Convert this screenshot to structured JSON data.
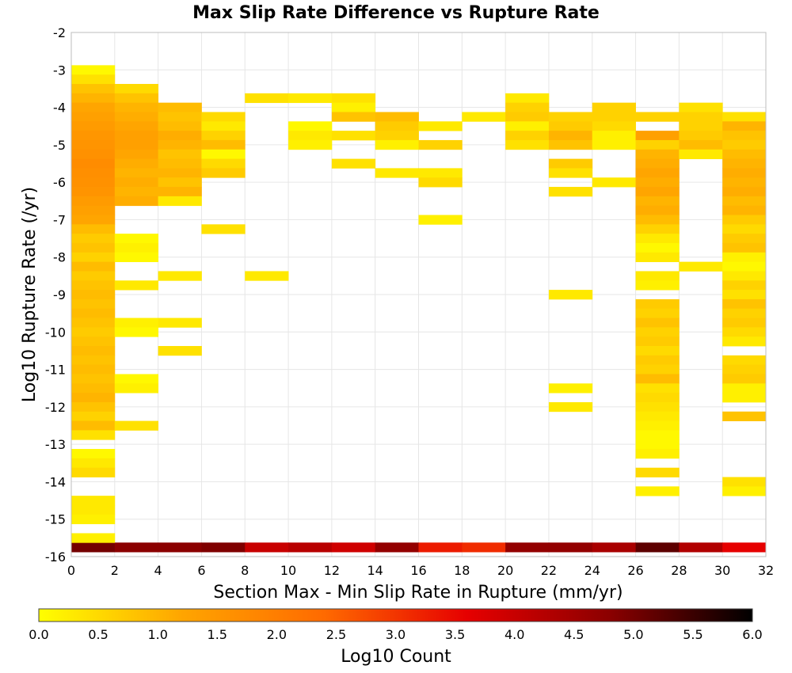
{
  "chart_data": {
    "type": "heatmap",
    "title": "Max Slip Rate Difference vs Rupture Rate",
    "xlabel": "Section Max - Min Slip Rate in Rupture (mm/yr)",
    "ylabel": "Log10 Rupture Rate (/yr)",
    "xlim": [
      0,
      32
    ],
    "ylim": [
      -16,
      -2
    ],
    "x_ticks": [
      "0",
      "2",
      "4",
      "6",
      "8",
      "10",
      "12",
      "14",
      "16",
      "18",
      "20",
      "22",
      "24",
      "26",
      "28",
      "30",
      "32"
    ],
    "y_ticks": [
      "-2",
      "-3",
      "-4",
      "-5",
      "-6",
      "-7",
      "-8",
      "-9",
      "-10",
      "-11",
      "-12",
      "-13",
      "-14",
      "-15",
      "-16"
    ],
    "grid": true,
    "bin_width": 2,
    "bin_height": 0.25,
    "colorbar": {
      "label": "Log10 Count",
      "range": [
        0,
        6
      ],
      "ticks": [
        "0.0",
        "0.5",
        "1.0",
        "1.5",
        "2.0",
        "2.5",
        "3.0",
        "3.5",
        "4.0",
        "4.5",
        "5.0",
        "5.5",
        "6.0"
      ],
      "colors": [
        "#ffff00",
        "#ffa500",
        "#ff6a00",
        "#e60000",
        "#8b0000",
        "#000000"
      ]
    },
    "cells": [
      [
        0,
        -15.75,
        5.0
      ],
      [
        2,
        -15.75,
        4.8
      ],
      [
        4,
        -15.75,
        4.8
      ],
      [
        6,
        -15.75,
        4.9
      ],
      [
        8,
        -15.75,
        4.0
      ],
      [
        10,
        -15.75,
        4.2
      ],
      [
        12,
        -15.75,
        3.9
      ],
      [
        14,
        -15.75,
        4.7
      ],
      [
        16,
        -15.75,
        3.3
      ],
      [
        18,
        -15.75,
        3.1
      ],
      [
        20,
        -15.75,
        4.7
      ],
      [
        22,
        -15.75,
        4.7
      ],
      [
        24,
        -15.75,
        4.4
      ],
      [
        26,
        -15.75,
        5.2
      ],
      [
        28,
        -15.75,
        4.3
      ],
      [
        30,
        -15.75,
        3.6
      ],
      [
        0,
        -3.0,
        0.1
      ],
      [
        0,
        -3.25,
        0.4
      ],
      [
        0,
        -3.5,
        0.8
      ],
      [
        0,
        -3.75,
        1.0
      ],
      [
        0,
        -4.0,
        1.2
      ],
      [
        0,
        -4.25,
        1.3
      ],
      [
        0,
        -4.5,
        1.4
      ],
      [
        0,
        -4.75,
        1.5
      ],
      [
        0,
        -5.0,
        1.55
      ],
      [
        0,
        -5.25,
        1.6
      ],
      [
        0,
        -5.5,
        1.7
      ],
      [
        0,
        -5.75,
        1.65
      ],
      [
        0,
        -6.0,
        1.6
      ],
      [
        0,
        -6.25,
        1.55
      ],
      [
        0,
        -6.5,
        1.4
      ],
      [
        0,
        -6.75,
        1.3
      ],
      [
        0,
        -7.0,
        1.2
      ],
      [
        0,
        -7.25,
        0.9
      ],
      [
        0,
        -7.5,
        0.7
      ],
      [
        0,
        -7.75,
        0.8
      ],
      [
        0,
        -8.0,
        0.6
      ],
      [
        0,
        -8.25,
        0.9
      ],
      [
        0,
        -8.5,
        0.7
      ],
      [
        0,
        -8.75,
        0.8
      ],
      [
        0,
        -9.0,
        0.9
      ],
      [
        0,
        -9.25,
        0.8
      ],
      [
        0,
        -9.5,
        0.9
      ],
      [
        0,
        -9.75,
        0.8
      ],
      [
        0,
        -10.0,
        0.7
      ],
      [
        0,
        -10.25,
        0.8
      ],
      [
        0,
        -10.5,
        0.9
      ],
      [
        0,
        -10.75,
        0.8
      ],
      [
        0,
        -11.0,
        0.9
      ],
      [
        0,
        -11.25,
        0.8
      ],
      [
        0,
        -11.5,
        0.9
      ],
      [
        0,
        -11.75,
        1.0
      ],
      [
        0,
        -12.0,
        0.8
      ],
      [
        0,
        -12.25,
        0.6
      ],
      [
        0,
        -12.5,
        0.9
      ],
      [
        0,
        -12.75,
        0.4
      ],
      [
        0,
        -13.25,
        0.1
      ],
      [
        0,
        -13.5,
        0.3
      ],
      [
        0,
        -13.75,
        0.5
      ],
      [
        0,
        -14.5,
        0.3
      ],
      [
        0,
        -14.75,
        0.3
      ],
      [
        0,
        -15.0,
        0.2
      ],
      [
        0,
        -15.5,
        0.2
      ],
      [
        2,
        -3.5,
        0.5
      ],
      [
        2,
        -3.75,
        0.8
      ],
      [
        2,
        -4.0,
        1.0
      ],
      [
        2,
        -4.25,
        1.1
      ],
      [
        2,
        -4.5,
        1.2
      ],
      [
        2,
        -4.75,
        1.3
      ],
      [
        2,
        -5.0,
        1.3
      ],
      [
        2,
        -5.25,
        1.2
      ],
      [
        2,
        -5.5,
        1.1
      ],
      [
        2,
        -5.75,
        1.0
      ],
      [
        2,
        -6.0,
        1.1
      ],
      [
        2,
        -6.25,
        1.0
      ],
      [
        2,
        -6.5,
        1.1
      ],
      [
        2,
        -7.5,
        0.1
      ],
      [
        2,
        -7.75,
        0.2
      ],
      [
        2,
        -8.0,
        0.1
      ],
      [
        2,
        -8.75,
        0.3
      ],
      [
        2,
        -9.75,
        0.2
      ],
      [
        2,
        -10.0,
        0.1
      ],
      [
        2,
        -11.25,
        0.1
      ],
      [
        2,
        -11.5,
        0.2
      ],
      [
        2,
        -12.5,
        0.4
      ],
      [
        4,
        -4.0,
        0.9
      ],
      [
        4,
        -4.25,
        0.8
      ],
      [
        4,
        -4.5,
        0.9
      ],
      [
        4,
        -4.75,
        1.1
      ],
      [
        4,
        -5.0,
        1.0
      ],
      [
        4,
        -5.25,
        0.8
      ],
      [
        4,
        -5.5,
        0.9
      ],
      [
        4,
        -5.75,
        1.0
      ],
      [
        4,
        -6.0,
        0.8
      ],
      [
        4,
        -6.25,
        1.0
      ],
      [
        4,
        -6.5,
        0.3
      ],
      [
        4,
        -8.5,
        0.3
      ],
      [
        4,
        -9.75,
        0.3
      ],
      [
        4,
        -10.5,
        0.4
      ],
      [
        6,
        -4.25,
        0.5
      ],
      [
        6,
        -4.5,
        0.3
      ],
      [
        6,
        -4.75,
        0.6
      ],
      [
        6,
        -5.0,
        0.9
      ],
      [
        6,
        -5.25,
        0.1
      ],
      [
        6,
        -5.5,
        0.5
      ],
      [
        6,
        -5.75,
        0.7
      ],
      [
        6,
        -7.25,
        0.4
      ],
      [
        8,
        -3.75,
        0.4
      ],
      [
        8,
        -8.5,
        0.3
      ],
      [
        10,
        -3.75,
        0.3
      ],
      [
        10,
        -4.5,
        0.1
      ],
      [
        10,
        -4.75,
        0.3
      ],
      [
        10,
        -5.0,
        0.2
      ],
      [
        12,
        -3.75,
        0.4
      ],
      [
        12,
        -4.0,
        0.2
      ],
      [
        12,
        -4.25,
        0.8
      ],
      [
        12,
        -4.75,
        0.4
      ],
      [
        12,
        -5.5,
        0.4
      ],
      [
        14,
        -4.25,
        0.9
      ],
      [
        14,
        -4.5,
        0.7
      ],
      [
        14,
        -4.75,
        0.6
      ],
      [
        14,
        -5.0,
        0.2
      ],
      [
        14,
        -5.75,
        0.3
      ],
      [
        16,
        -4.5,
        0.3
      ],
      [
        16,
        -5.0,
        0.6
      ],
      [
        16,
        -5.75,
        0.3
      ],
      [
        16,
        -6.0,
        0.5
      ],
      [
        16,
        -7.0,
        0.2
      ],
      [
        18,
        -4.25,
        0.3
      ],
      [
        20,
        -3.75,
        0.3
      ],
      [
        20,
        -4.0,
        0.6
      ],
      [
        20,
        -4.25,
        0.7
      ],
      [
        20,
        -4.5,
        0.2
      ],
      [
        20,
        -4.75,
        0.6
      ],
      [
        20,
        -5.0,
        0.4
      ],
      [
        22,
        -4.25,
        0.6
      ],
      [
        22,
        -4.5,
        0.7
      ],
      [
        22,
        -4.75,
        1.0
      ],
      [
        22,
        -5.0,
        0.8
      ],
      [
        22,
        -5.5,
        0.7
      ],
      [
        22,
        -5.75,
        0.4
      ],
      [
        22,
        -6.25,
        0.4
      ],
      [
        22,
        -9.0,
        0.3
      ],
      [
        22,
        -11.5,
        0.2
      ],
      [
        22,
        -12.0,
        0.3
      ],
      [
        24,
        -4.0,
        0.6
      ],
      [
        24,
        -4.25,
        0.6
      ],
      [
        24,
        -4.5,
        0.5
      ],
      [
        24,
        -4.75,
        0.2
      ],
      [
        24,
        -5.0,
        0.2
      ],
      [
        24,
        -6.0,
        0.3
      ],
      [
        26,
        -4.25,
        0.6
      ],
      [
        26,
        -4.75,
        1.3
      ],
      [
        26,
        -5.0,
        0.6
      ],
      [
        26,
        -5.25,
        1.0
      ],
      [
        26,
        -5.5,
        1.1
      ],
      [
        26,
        -5.75,
        1.2
      ],
      [
        26,
        -6.0,
        1.1
      ],
      [
        26,
        -6.25,
        1.2
      ],
      [
        26,
        -6.5,
        1.0
      ],
      [
        26,
        -6.75,
        1.1
      ],
      [
        26,
        -7.0,
        0.9
      ],
      [
        26,
        -7.25,
        0.6
      ],
      [
        26,
        -7.5,
        0.3
      ],
      [
        26,
        -7.75,
        0.1
      ],
      [
        26,
        -8.0,
        0.3
      ],
      [
        26,
        -8.5,
        0.3
      ],
      [
        26,
        -8.75,
        0.2
      ],
      [
        26,
        -9.25,
        0.7
      ],
      [
        26,
        -9.5,
        0.6
      ],
      [
        26,
        -9.75,
        0.8
      ],
      [
        26,
        -10.0,
        0.6
      ],
      [
        26,
        -10.25,
        0.7
      ],
      [
        26,
        -10.5,
        0.5
      ],
      [
        26,
        -10.75,
        0.7
      ],
      [
        26,
        -11.0,
        0.6
      ],
      [
        26,
        -11.25,
        0.9
      ],
      [
        26,
        -11.5,
        0.4
      ],
      [
        26,
        -11.75,
        0.5
      ],
      [
        26,
        -12.0,
        0.4
      ],
      [
        26,
        -12.25,
        0.3
      ],
      [
        26,
        -12.5,
        0.2
      ],
      [
        26,
        -12.75,
        0.1
      ],
      [
        26,
        -13.0,
        0.1
      ],
      [
        26,
        -13.25,
        0.2
      ],
      [
        26,
        -13.75,
        0.5
      ],
      [
        26,
        -14.25,
        0.2
      ],
      [
        28,
        -4.0,
        0.4
      ],
      [
        28,
        -4.25,
        0.6
      ],
      [
        28,
        -4.5,
        0.6
      ],
      [
        28,
        -4.75,
        0.7
      ],
      [
        28,
        -5.0,
        0.9
      ],
      [
        28,
        -5.25,
        0.3
      ],
      [
        28,
        -8.25,
        0.3
      ],
      [
        30,
        -4.25,
        0.4
      ],
      [
        30,
        -4.5,
        1.0
      ],
      [
        30,
        -4.75,
        0.8
      ],
      [
        30,
        -5.0,
        0.7
      ],
      [
        30,
        -5.25,
        0.9
      ],
      [
        30,
        -5.5,
        1.0
      ],
      [
        30,
        -5.75,
        1.1
      ],
      [
        30,
        -6.0,
        1.0
      ],
      [
        30,
        -6.25,
        1.1
      ],
      [
        30,
        -6.5,
        0.9
      ],
      [
        30,
        -6.75,
        1.0
      ],
      [
        30,
        -7.0,
        0.7
      ],
      [
        30,
        -7.25,
        0.5
      ],
      [
        30,
        -7.5,
        0.7
      ],
      [
        30,
        -7.75,
        0.8
      ],
      [
        30,
        -8.0,
        0.2
      ],
      [
        30,
        -8.25,
        0.1
      ],
      [
        30,
        -8.5,
        0.3
      ],
      [
        30,
        -8.75,
        0.6
      ],
      [
        30,
        -9.0,
        0.4
      ],
      [
        30,
        -9.25,
        0.8
      ],
      [
        30,
        -9.5,
        0.6
      ],
      [
        30,
        -9.75,
        0.7
      ],
      [
        30,
        -10.0,
        0.5
      ],
      [
        30,
        -10.25,
        0.3
      ],
      [
        30,
        -10.75,
        0.5
      ],
      [
        30,
        -11.0,
        0.6
      ],
      [
        30,
        -11.25,
        0.7
      ],
      [
        30,
        -11.5,
        0.2
      ],
      [
        30,
        -11.75,
        0.2
      ],
      [
        30,
        -12.25,
        0.8
      ],
      [
        30,
        -14.0,
        0.4
      ],
      [
        30,
        -14.25,
        0.2
      ]
    ]
  }
}
